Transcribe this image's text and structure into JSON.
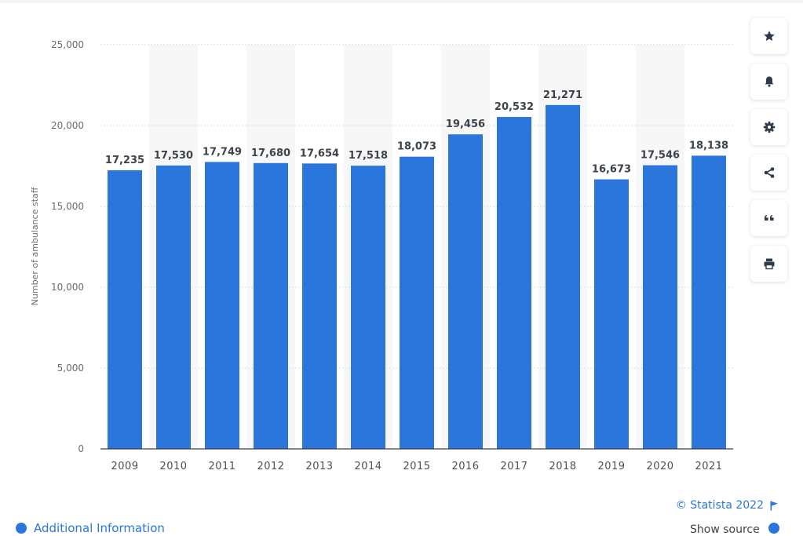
{
  "chart_data": {
    "type": "bar",
    "title": "",
    "xlabel": "",
    "ylabel": "Number of ambulance staff",
    "categories": [
      "2009",
      "2010",
      "2011",
      "2012",
      "2013",
      "2014",
      "2015",
      "2016",
      "2017",
      "2018",
      "2019",
      "2020",
      "2021"
    ],
    "values": [
      17235,
      17530,
      17749,
      17680,
      17654,
      17518,
      18073,
      19456,
      20532,
      21271,
      16673,
      17546,
      18138
    ],
    "data_labels": [
      "17,235",
      "17,530",
      "17,749",
      "17,680",
      "17,654",
      "17,518",
      "18,073",
      "19,456",
      "20,532",
      "21,271",
      "16,673",
      "17,546",
      "18,138"
    ],
    "ylim": [
      0,
      25000
    ],
    "yticks": [
      0,
      5000,
      10000,
      15000,
      20000,
      25000
    ],
    "ytick_labels": [
      "0",
      "5,000",
      "10,000",
      "15,000",
      "20,000",
      "25,000"
    ],
    "grid": true,
    "bar_color": "#2a76dd",
    "band_color": "#f7f7f8"
  },
  "toolbar": {
    "buttons": [
      {
        "name": "favorite-button",
        "icon": "star-icon"
      },
      {
        "name": "notification-button",
        "icon": "bell-icon"
      },
      {
        "name": "settings-button",
        "icon": "gear-icon"
      },
      {
        "name": "share-button",
        "icon": "share-icon"
      },
      {
        "name": "cite-button",
        "icon": "quote-icon"
      },
      {
        "name": "print-button",
        "icon": "print-icon"
      }
    ],
    "icon_color": "#2f3a4a"
  },
  "credit": {
    "text": "© Statista 2022",
    "icon": "flag-icon"
  },
  "footer": {
    "additional_info": "Additional Information",
    "show_source": "Show source"
  },
  "colors": {
    "accent": "#2a76dd"
  }
}
